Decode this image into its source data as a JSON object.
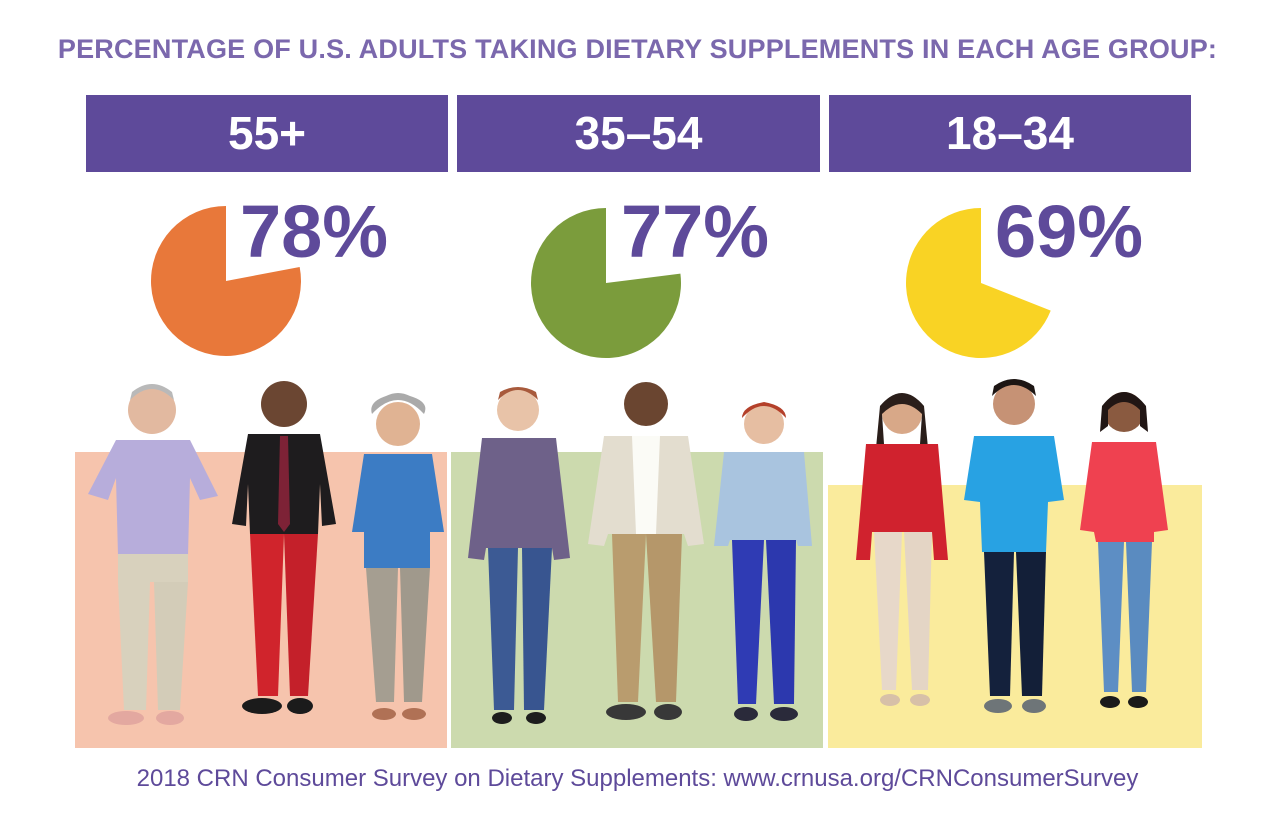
{
  "title": "PERCENTAGE OF U.S. ADULTS TAKING DIETARY SUPPLEMENTS IN EACH AGE GROUP:",
  "source": "2018 CRN Consumer Survey on Dietary Supplements: www.crnusa.org/CRNConsumerSurvey",
  "colors": {
    "header": "#5e4a9a",
    "text": "#5e4a9a",
    "title": "#7b68ad"
  },
  "chart_data": {
    "type": "pie",
    "title": "PERCENTAGE OF U.S. ADULTS TAKING DIETARY SUPPLEMENTS IN EACH AGE GROUP:",
    "categories": [
      "55+",
      "35–54",
      "18–34"
    ],
    "values": [
      78,
      77,
      69
    ],
    "labels": [
      "78%",
      "77%",
      "69%"
    ],
    "unit": "%",
    "colors": [
      "#e8783a",
      "#7b9c3c",
      "#f9d324"
    ],
    "panel_colors": [
      "#f6c4ad",
      "#ccdaae",
      "#faeb9c"
    ]
  },
  "groups": [
    {
      "label": "55+",
      "pct_label": "78%"
    },
    {
      "label": "35–54",
      "pct_label": "77%"
    },
    {
      "label": "18–34",
      "pct_label": "69%"
    }
  ]
}
